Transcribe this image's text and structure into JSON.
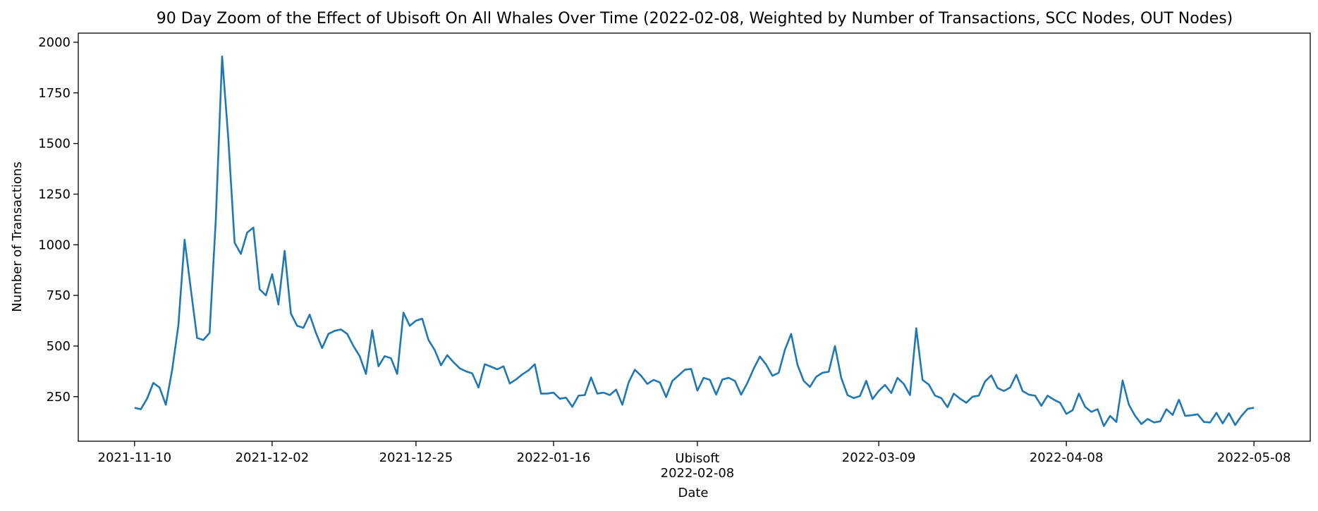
{
  "chart_data": {
    "type": "line",
    "title": "90 Day Zoom of the Effect of Ubisoft On All Whales Over Time (2022-02-08, Weighted by Number of Transactions, SCC Nodes, OUT Nodes)",
    "xlabel": "Date",
    "ylabel": "Number of Transactions",
    "x_start": "2021-11-10",
    "x_end": "2022-05-08",
    "xlim": [
      "2021-11-01",
      "2022-05-17"
    ],
    "ylim": [
      30,
      2045
    ],
    "grid": false,
    "legend": "none",
    "x_ticks": [
      "2021-11-10",
      "2021-12-02",
      "2021-12-25",
      "2022-01-16",
      "2022-02-08",
      "2022-03-09",
      "2022-04-08",
      "2022-05-08"
    ],
    "x_tick_labels": [
      "2021-11-10",
      "2021-12-02",
      "2021-12-25",
      "2022-01-16",
      "2022-02-08",
      "2022-03-09",
      "2022-04-08",
      "2022-05-08"
    ],
    "y_ticks": [
      250,
      500,
      750,
      1000,
      1250,
      1500,
      1750,
      2000
    ],
    "y_tick_labels": [
      "250",
      "500",
      "750",
      "1000",
      "1250",
      "1500",
      "1750",
      "2000"
    ],
    "annotations": [
      {
        "x": "2022-02-08",
        "text": "Ubisoft"
      }
    ],
    "series": [
      {
        "color": "#1f77b4",
        "values": [
          195,
          188,
          240,
          318,
          295,
          210,
          380,
          600,
          1025,
          780,
          540,
          530,
          565,
          1130,
          1930,
          1520,
          1010,
          955,
          1060,
          1085,
          780,
          750,
          855,
          705,
          970,
          660,
          600,
          590,
          655,
          565,
          490,
          560,
          575,
          582,
          560,
          500,
          450,
          362,
          578,
          400,
          450,
          440,
          362,
          665,
          600,
          625,
          635,
          530,
          480,
          405,
          455,
          420,
          390,
          375,
          365,
          295,
          410,
          398,
          385,
          400,
          315,
          335,
          360,
          380,
          410,
          265,
          265,
          270,
          240,
          245,
          200,
          255,
          258,
          345,
          265,
          270,
          258,
          285,
          210,
          320,
          383,
          353,
          313,
          333,
          320,
          248,
          328,
          355,
          383,
          387,
          280,
          343,
          333,
          260,
          335,
          343,
          328,
          260,
          318,
          388,
          448,
          408,
          353,
          368,
          482,
          560,
          408,
          328,
          298,
          348,
          368,
          373,
          500,
          343,
          258,
          243,
          253,
          328,
          238,
          278,
          308,
          268,
          343,
          313,
          258,
          588,
          333,
          310,
          255,
          243,
          198,
          265,
          240,
          220,
          250,
          255,
          325,
          355,
          293,
          278,
          295,
          358,
          278,
          260,
          255,
          205,
          255,
          235,
          220,
          165,
          183,
          265,
          200,
          175,
          188,
          105,
          155,
          125,
          330,
          210,
          155,
          115,
          140,
          123,
          128,
          188,
          160,
          235,
          155,
          158,
          163,
          125,
          123,
          170,
          118,
          168,
          110,
          155,
          190,
          195
        ]
      }
    ]
  }
}
